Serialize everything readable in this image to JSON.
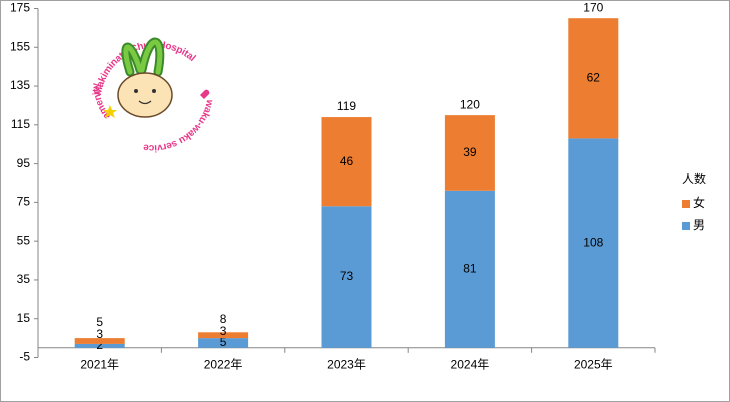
{
  "chart_data": {
    "type": "stacked-bar",
    "categories": [
      "2021年",
      "2022年",
      "2023年",
      "2024年",
      "2025年"
    ],
    "series": [
      {
        "name": "男",
        "color": "#5b9bd5",
        "values": [
          2,
          5,
          73,
          81,
          108
        ]
      },
      {
        "name": "女",
        "color": "#ed7d31",
        "values": [
          3,
          3,
          46,
          39,
          62
        ]
      }
    ],
    "totals": [
      5,
      8,
      119,
      120,
      170
    ],
    "ylim": [
      -5,
      175
    ],
    "yticks": [
      -5,
      15,
      35,
      55,
      75,
      95,
      115,
      135,
      155,
      175
    ],
    "legend_title": "人数",
    "legend": "right",
    "grid": false
  },
  "logo": {
    "top_text": "Makiminato Chuo Hospital",
    "right_text": "waku-waku service",
    "left_text": "amenity"
  }
}
